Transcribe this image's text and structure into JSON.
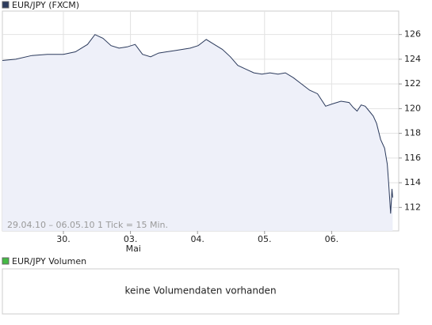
{
  "chart_data": [
    {
      "type": "line",
      "title": "EUR/JPY (FXCM)",
      "note": "29.04.10 – 06.05.10   1 Tick = 15 Min.",
      "x": [
        0.09,
        0.29,
        0.53,
        0.76,
        1.0,
        1.18,
        1.36,
        1.47,
        1.59,
        1.71,
        1.83,
        1.95,
        2.07,
        2.18,
        2.3,
        2.42,
        2.54,
        2.66,
        2.78,
        2.89,
        3.01,
        3.13,
        3.25,
        3.37,
        3.49,
        3.6,
        3.72,
        3.84,
        3.96,
        4.08,
        4.2,
        4.31,
        4.43,
        4.55,
        4.67,
        4.79,
        4.91,
        5.02,
        5.14,
        5.26,
        5.32,
        5.38,
        5.44,
        5.5,
        5.56,
        5.62,
        5.67,
        5.73,
        5.79,
        5.83,
        5.85,
        5.88,
        5.9,
        5.91
      ],
      "series": [
        {
          "name": "EUR/JPY (FXCM)",
          "color": "#2b3a5c",
          "fill": "#eef0f9",
          "values": [
            123.9,
            124.0,
            124.3,
            124.4,
            124.4,
            124.6,
            125.2,
            126.0,
            125.7,
            125.1,
            124.9,
            125.0,
            125.2,
            124.4,
            124.2,
            124.5,
            124.6,
            124.7,
            124.8,
            124.9,
            125.1,
            125.6,
            125.2,
            124.8,
            124.2,
            123.5,
            123.2,
            122.9,
            122.8,
            122.9,
            122.8,
            122.9,
            122.5,
            122.0,
            121.5,
            121.2,
            120.2,
            120.4,
            120.6,
            120.5,
            120.1,
            119.8,
            120.3,
            120.2,
            119.8,
            119.4,
            118.8,
            117.5,
            116.8,
            115.5,
            114.0,
            111.5,
            113.5,
            112.8
          ]
        }
      ],
      "xlim": [
        0.09,
        6.0
      ],
      "xticks": [
        {
          "value": 1,
          "label": "30."
        },
        {
          "value": 2,
          "label": "03."
        },
        {
          "value": 3,
          "label": "04."
        },
        {
          "value": 4,
          "label": "05."
        },
        {
          "value": 5,
          "label": "06."
        }
      ],
      "month_label": "Mai",
      "ylim": [
        110.1,
        127.9
      ],
      "yticks": [
        112,
        114,
        116,
        118,
        120,
        122,
        124,
        126
      ],
      "grid": true
    },
    {
      "type": "empty",
      "title": "EUR/JPY Volumen",
      "color": "#44bb44",
      "message": "keine Volumendaten vorhanden"
    }
  ]
}
